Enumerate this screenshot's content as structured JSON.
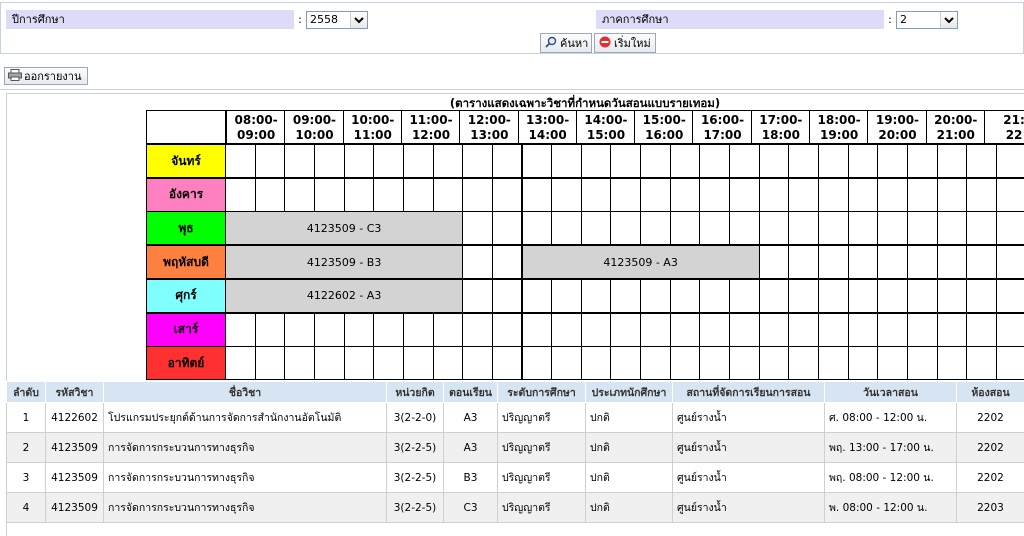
{
  "search": {
    "year_label": "ปีการศึกษา",
    "year_colon": ":",
    "year_value": "2558",
    "term_label": "ภาคการศึกษา",
    "term_colon": ":",
    "term_value": "2",
    "search_button": "ค้นหา",
    "reset_button": "เริ่มใหม่"
  },
  "report_button": "ออกรายงาน",
  "schedule": {
    "title": "(ตารางแสดงเฉพาะวิชาที่กำหนดวันสอนแบบรายเทอม)",
    "time_slots": [
      {
        "start": "08:00-",
        "end": "09:00"
      },
      {
        "start": "09:00-",
        "end": "10:00"
      },
      {
        "start": "10:00-",
        "end": "11:00"
      },
      {
        "start": "11:00-",
        "end": "12:00"
      },
      {
        "start": "12:00-",
        "end": "13:00"
      },
      {
        "start": "13:00-",
        "end": "14:00"
      },
      {
        "start": "14:00-",
        "end": "15:00"
      },
      {
        "start": "15:00-",
        "end": "16:00"
      },
      {
        "start": "16:00-",
        "end": "17:00"
      },
      {
        "start": "17:00-",
        "end": "18:00"
      },
      {
        "start": "18:00-",
        "end": "19:00"
      },
      {
        "start": "19:00-",
        "end": "20:00"
      },
      {
        "start": "20:00-",
        "end": "21:00"
      },
      {
        "start": "21:",
        "end": "22"
      }
    ],
    "days": [
      {
        "name": "จันทร์",
        "color": "#ffff00"
      },
      {
        "name": "อังคาร",
        "color": "#ff80c0"
      },
      {
        "name": "พุธ",
        "color": "#00ff00"
      },
      {
        "name": "พฤหัสบดี",
        "color": "#ff8040"
      },
      {
        "name": "ศุกร์",
        "color": "#80ffff"
      },
      {
        "name": "เสาร์",
        "color": "#ff00ff"
      },
      {
        "name": "อาทิตย์",
        "color": "#ff3030"
      }
    ],
    "blocks": [
      {
        "day": 2,
        "start_slot": 0,
        "end_slot": 4,
        "text": "4123509 - C3"
      },
      {
        "day": 3,
        "start_slot": 0,
        "end_slot": 4,
        "text": "4123509 - B3"
      },
      {
        "day": 3,
        "start_slot": 5,
        "end_slot": 9,
        "text": "4123509 - A3"
      },
      {
        "day": 4,
        "start_slot": 0,
        "end_slot": 4,
        "text": "4122602 - A3"
      }
    ]
  },
  "courses": {
    "headers": [
      "ลำดับ",
      "รหัสวิชา",
      "ชื่อวิชา",
      "หน่วยกิต",
      "ตอนเรียน",
      "ระดับการศึกษา",
      "ประเภทนักศึกษา",
      "สถานที่จัดการเรียนการสอน",
      "วันเวลาสอน",
      "ห้องสอน"
    ],
    "rows": [
      [
        "1",
        "4122602",
        "โปรแกรมประยุกต์ด้านการจัดการสำนักงานอัตโนมัติ",
        "3(2-2-0)",
        "A3",
        "ปริญญาตรี",
        "ปกติ",
        "ศูนย์รางน้ำ",
        "ศ. 08:00 - 12:00 น.",
        "2202"
      ],
      [
        "2",
        "4123509",
        "การจัดการกระบวนการทางธุรกิจ",
        "3(2-2-5)",
        "A3",
        "ปริญญาตรี",
        "ปกติ",
        "ศูนย์รางน้ำ",
        "พฤ. 13:00 - 17:00 น.",
        "2202"
      ],
      [
        "3",
        "4123509",
        "การจัดการกระบวนการทางธุรกิจ",
        "3(2-2-5)",
        "B3",
        "ปริญญาตรี",
        "ปกติ",
        "ศูนย์รางน้ำ",
        "พฤ. 08:00 - 12:00 น.",
        "2202"
      ],
      [
        "4",
        "4123509",
        "การจัดการกระบวนการทางธุรกิจ",
        "3(2-2-5)",
        "C3",
        "ปริญญาตรี",
        "ปกติ",
        "ศูนย์รางน้ำ",
        "พ. 08:00 - 12:00 น.",
        "2203"
      ]
    ]
  }
}
